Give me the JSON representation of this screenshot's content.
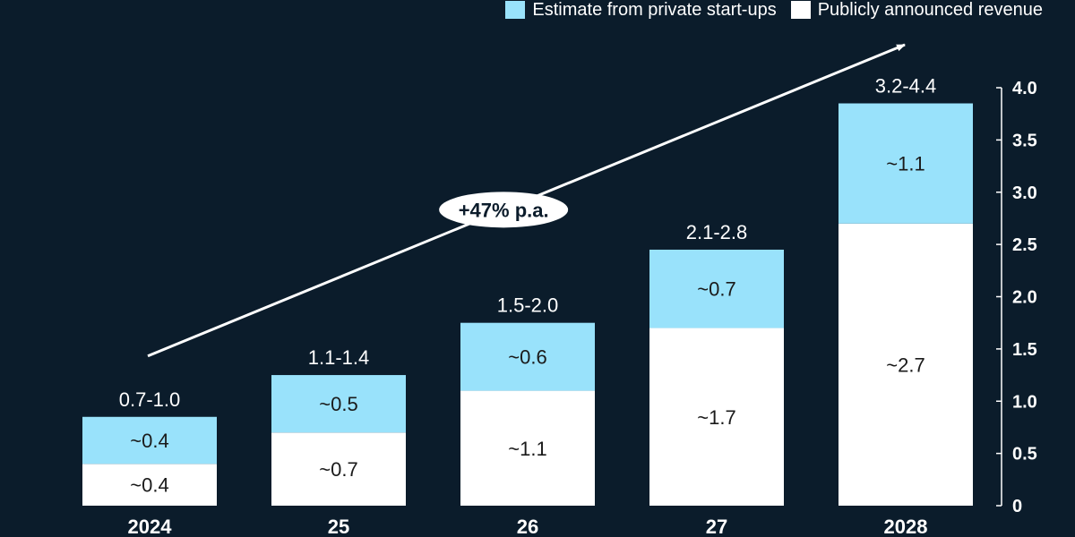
{
  "colors": {
    "background": "#0b1c2b",
    "estimate": "#99e2fb",
    "public": "#ffffff",
    "text_light": "#ffffff",
    "text_dark": "#1a1a1a"
  },
  "legend": {
    "estimate_label": "Estimate from private start-ups",
    "public_label": "Publicly announced revenue"
  },
  "chart_data": {
    "type": "bar",
    "stacked": true,
    "categories": [
      "2024",
      "25",
      "26",
      "27",
      "2028"
    ],
    "series": [
      {
        "name": "Publicly announced revenue",
        "values": [
          0.4,
          0.7,
          1.1,
          1.7,
          2.7
        ],
        "labels": [
          "~0.4",
          "~0.7",
          "~1.1",
          "~1.7",
          "~2.7"
        ],
        "color": "#ffffff"
      },
      {
        "name": "Estimate from private start-ups",
        "values": [
          0.45,
          0.55,
          0.65,
          0.75,
          1.15
        ],
        "labels": [
          "~0.4",
          "~0.5",
          "~0.6",
          "~0.7",
          "~1.1"
        ],
        "color": "#99e2fb"
      }
    ],
    "totals": [
      "0.7-1.0",
      "1.1-1.4",
      "1.5-2.0",
      "2.1-2.8",
      "3.2-4.4"
    ],
    "ylim": [
      0,
      4.0
    ],
    "yticks": [
      "0",
      "0.5",
      "1.0",
      "1.5",
      "2.0",
      "2.5",
      "3.0",
      "3.5",
      "4.0"
    ],
    "yaxis_position": "right",
    "grid": false,
    "legend_position": "top-right",
    "annotation": {
      "text": "+47% p.a.",
      "type": "growth-arrow"
    }
  }
}
